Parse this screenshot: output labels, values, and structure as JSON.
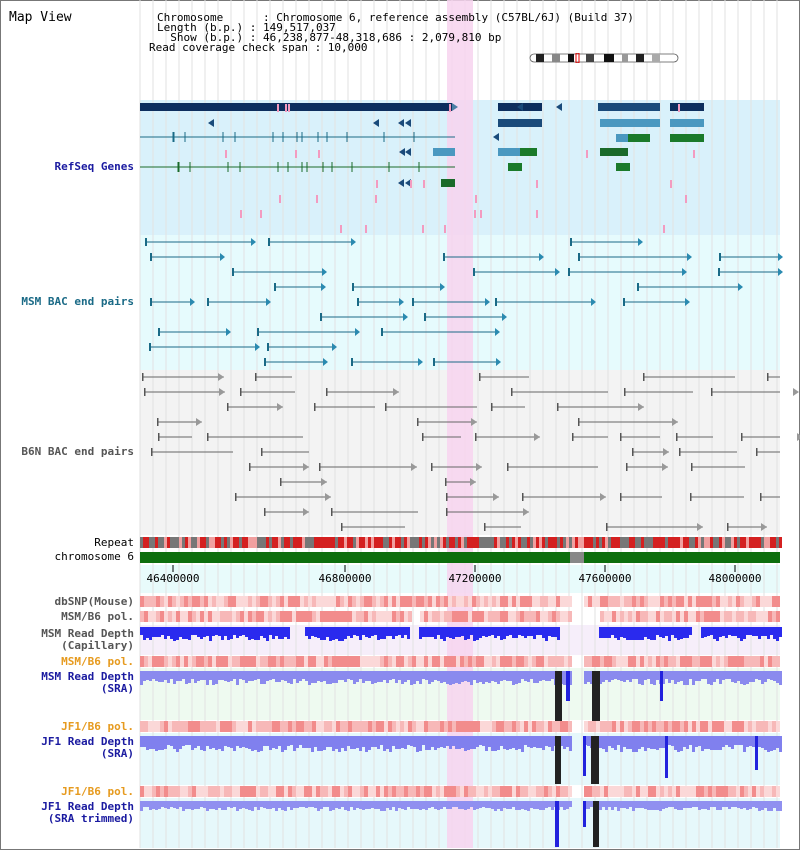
{
  "map_title": "Map View",
  "info": {
    "chromosome_line": "Chromosome      : Chromosome 6, reference assembly (C57BL/6J) (Build 37)",
    "length_line": "Length (b.p.) : 149,517,037",
    "show_line": "  Show (b.p.) : 46,238,877-48,318,686 : 2,079,810 bp",
    "coverage_line": "Read coverage check span : 10,000"
  },
  "tracks": {
    "refseq": "RefSeq Genes",
    "msm_bac": "MSM BAC end pairs",
    "b6n_bac": "B6N BAC end pairs",
    "repeat": "Repeat",
    "chromosome": "chromosome 6",
    "dbsnp": "dbSNP(Mouse)",
    "msm_b6_pol_1": "MSM/B6 pol.",
    "msm_read_depth_cap": "MSM Read Depth\n(Capillary)",
    "msm_b6_pol_2": "MSM/B6 pol.",
    "msm_read_depth_sra": "MSM Read Depth\n(SRA)",
    "jf1_b6_pol_1": "JF1/B6 pol.",
    "jf1_read_depth_sra": "JF1 Read Depth\n(SRA)",
    "jf1_b6_pol_2": "JF1/B6 pol.",
    "jf1_read_depth_trim": "JF1 Read Depth\n(SRA trimmed)"
  },
  "axis": {
    "ticks": [
      "46400000",
      "46800000",
      "47200000",
      "47600000",
      "48000000"
    ]
  },
  "colors": {
    "refseq_label": "#1a1aa0",
    "msm_bac_label": "#1a6a86",
    "b6n_bac_label": "#555555",
    "orange_label": "#e69a1e",
    "blue_label": "#1a1aa0",
    "highlight": "#f7d4ef",
    "refseq_bg": "#d9f1fb",
    "msm_bg": "#e6fbfd",
    "b6n_bg": "#f3f3f3",
    "depth_bg": "#f6eefa",
    "sra_bg": "#eefaf0"
  }
}
